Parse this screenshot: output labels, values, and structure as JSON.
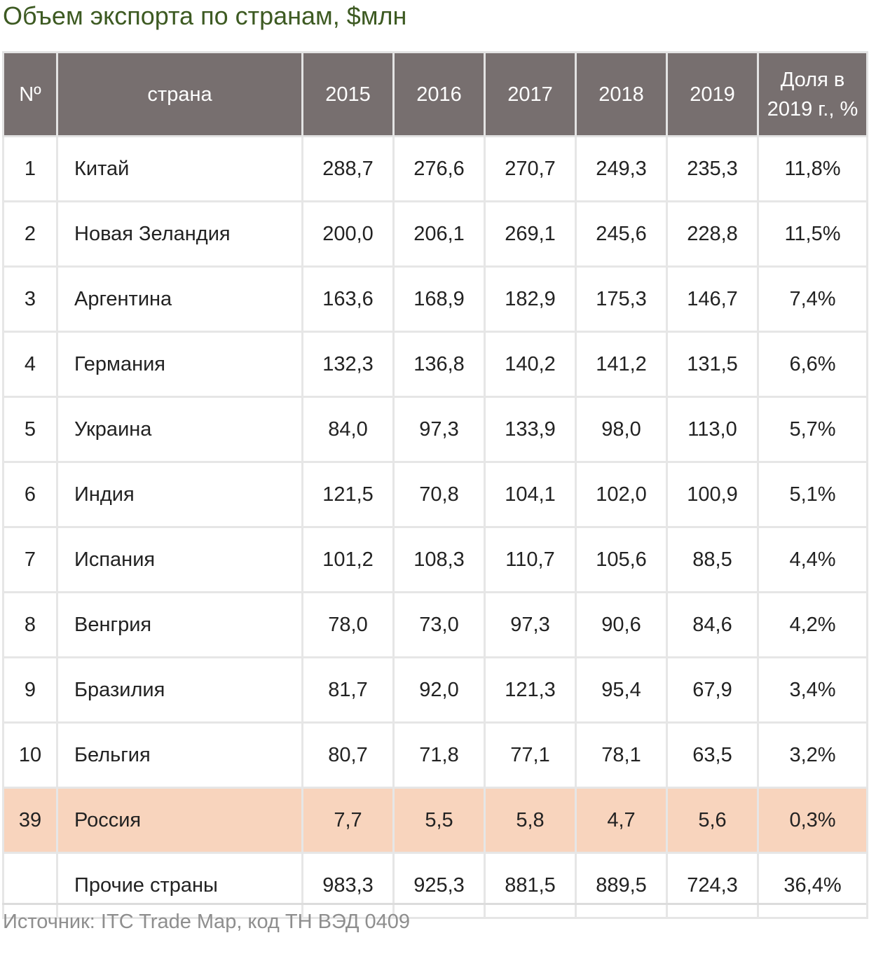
{
  "title": "Объем экспорта по странам, $млн",
  "headers": [
    "Nº",
    "страна",
    "2015",
    "2016",
    "2017",
    "2018",
    "2019",
    "Доля в 2019 г., %"
  ],
  "rows": [
    {
      "n": "1",
      "country": "Китай",
      "v": [
        "288,7",
        "276,6",
        "270,7",
        "249,3",
        "235,3"
      ],
      "share": "11,8%"
    },
    {
      "n": "2",
      "country": "Новая Зеландия",
      "v": [
        "200,0",
        "206,1",
        "269,1",
        "245,6",
        "228,8"
      ],
      "share": "11,5%"
    },
    {
      "n": "3",
      "country": "Аргентина",
      "v": [
        "163,6",
        "168,9",
        "182,9",
        "175,3",
        "146,7"
      ],
      "share": "7,4%"
    },
    {
      "n": "4",
      "country": "Германия",
      "v": [
        "132,3",
        "136,8",
        "140,2",
        "141,2",
        "131,5"
      ],
      "share": "6,6%"
    },
    {
      "n": "5",
      "country": "Украина",
      "v": [
        "84,0",
        "97,3",
        "133,9",
        "98,0",
        "113,0"
      ],
      "share": "5,7%"
    },
    {
      "n": "6",
      "country": "Индия",
      "v": [
        "121,5",
        "70,8",
        "104,1",
        "102,0",
        "100,9"
      ],
      "share": "5,1%"
    },
    {
      "n": "7",
      "country": "Испания",
      "v": [
        "101,2",
        "108,3",
        "110,7",
        "105,6",
        "88,5"
      ],
      "share": "4,4%"
    },
    {
      "n": "8",
      "country": "Венгрия",
      "v": [
        "78,0",
        "73,0",
        "97,3",
        "90,6",
        "84,6"
      ],
      "share": "4,2%"
    },
    {
      "n": "9",
      "country": "Бразилия",
      "v": [
        "81,7",
        "92,0",
        "121,3",
        "95,4",
        "67,9"
      ],
      "share": "3,4%"
    },
    {
      "n": "10",
      "country": "Бельгия",
      "v": [
        "80,7",
        "71,8",
        "77,1",
        "78,1",
        "63,5"
      ],
      "share": "3,2%"
    },
    {
      "n": "39",
      "country": "Россия",
      "v": [
        "7,7",
        "5,5",
        "5,8",
        "4,7",
        "5,6"
      ],
      "share": "0,3%",
      "highlight": true
    },
    {
      "n": "",
      "country": "Прочие страны",
      "v": [
        "983,3",
        "925,3",
        "881,5",
        "889,5",
        "724,3"
      ],
      "share": "36,4%"
    }
  ],
  "source": "Источник: ITC Trade Map, код ТН ВЭД 0409",
  "colors": {
    "header_bg": "#776f6f",
    "highlight": "#f8d4bd",
    "title": "#3d5a22"
  }
}
